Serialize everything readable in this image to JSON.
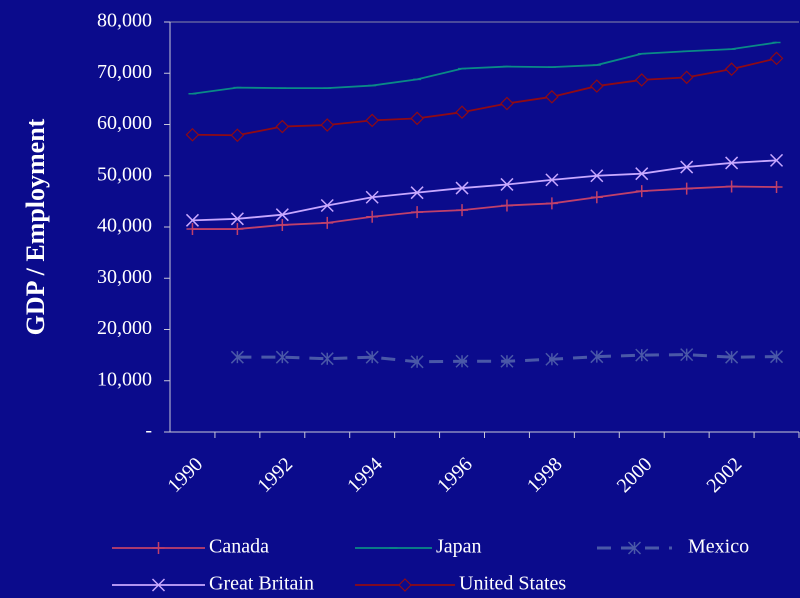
{
  "chart_data": {
    "type": "line",
    "ylabel": "GDP / Employment",
    "categories": [
      "1990",
      null,
      "1992",
      null,
      "1994",
      null,
      "1996",
      null,
      "1998",
      null,
      "2000",
      null,
      "2002",
      null
    ],
    "series": [
      {
        "name": "Canada",
        "color": "#c0406a",
        "marker": "plus",
        "dash": false,
        "values": [
          39600,
          39600,
          40400,
          40800,
          42000,
          42900,
          43300,
          44200,
          44600,
          45800,
          47000,
          47500,
          47900,
          47800
        ]
      },
      {
        "name": "Japan",
        "color": "#0a8a86",
        "marker": "dash",
        "dash": false,
        "values": [
          66000,
          67200,
          67100,
          67100,
          67600,
          68800,
          70900,
          71300,
          71200,
          71600,
          73800,
          74300,
          74700,
          76000
        ]
      },
      {
        "name": "Mexico",
        "color": "#4a58a8",
        "marker": "star",
        "dash": true,
        "values": [
          null,
          14600,
          14600,
          14300,
          14600,
          13700,
          13800,
          13800,
          14200,
          14700,
          15000,
          15100,
          14600,
          14700
        ]
      },
      {
        "name": "Great Britain",
        "color": "#c8a8ff",
        "marker": "cross",
        "dash": false,
        "values": [
          41300,
          41600,
          42400,
          44200,
          45800,
          46700,
          47600,
          48300,
          49200,
          50000,
          50400,
          51700,
          52500,
          53000
        ]
      },
      {
        "name": "United States",
        "color": "#900a14",
        "marker": "diamond",
        "dash": false,
        "values": [
          58000,
          57900,
          59600,
          59900,
          60800,
          61200,
          62400,
          64100,
          65400,
          67500,
          68700,
          69200,
          70800,
          72900
        ]
      }
    ],
    "ylim": [
      0,
      80000
    ],
    "yticks": [
      {
        "value": 0,
        "label": "-"
      },
      {
        "value": 10000,
        "label": "10,000"
      },
      {
        "value": 20000,
        "label": "20,000"
      },
      {
        "value": 30000,
        "label": "30,000"
      },
      {
        "value": 40000,
        "label": "40,000"
      },
      {
        "value": 50000,
        "label": "50,000"
      },
      {
        "value": 60000,
        "label": "60,000"
      },
      {
        "value": 70000,
        "label": "70,000"
      },
      {
        "value": 80000,
        "label": "80,000"
      }
    ]
  }
}
